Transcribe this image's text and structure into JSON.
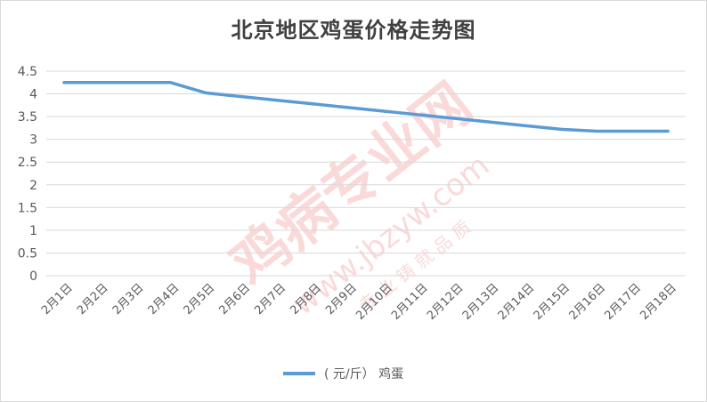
{
  "chart_data": {
    "type": "line",
    "title": "北京地区鸡蛋价格走势图",
    "categories": [
      "2月1日",
      "2月2日",
      "2月3日",
      "2月4日",
      "2月5日",
      "2月6日",
      "2月7日",
      "2月8日",
      "2月9日",
      "2月10日",
      "2月11日",
      "2月12日",
      "2月13日",
      "2月14日",
      "2月15日",
      "2月16日",
      "2月17日",
      "2月18日"
    ],
    "series": [
      {
        "name": "( 元/斤） 鸡蛋",
        "values": [
          4.25,
          4.25,
          4.25,
          4.25,
          4.02,
          3.94,
          3.86,
          3.78,
          3.7,
          3.62,
          3.54,
          3.46,
          3.38,
          3.3,
          3.22,
          3.18,
          3.18,
          3.18
        ],
        "color": "#5b9bd5"
      }
    ],
    "yticks": [
      "0",
      "0.5",
      "1",
      "1.5",
      "2",
      "2.5",
      "3",
      "3.5",
      "4",
      "4.5"
    ],
    "ylim": [
      0,
      4.5
    ],
    "grid": true,
    "legend_position": "bottom"
  },
  "watermark": {
    "text": "鸡病专业网",
    "url": "www.jbzyw.com",
    "sub": "专 业 铸 就 品 质"
  }
}
